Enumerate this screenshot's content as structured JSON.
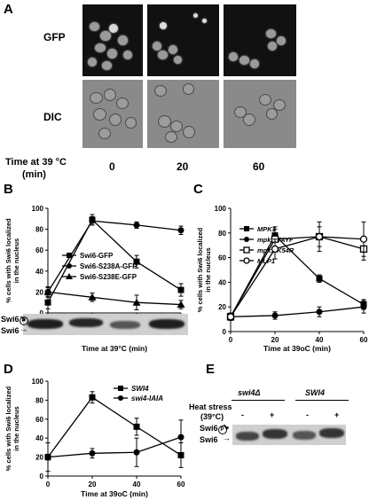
{
  "panel_a": {
    "label": "A",
    "row_gfp": "GFP",
    "row_dic": "DIC",
    "time_label_1": "Time at 39 °C",
    "time_label_2": "(min)",
    "times": [
      "0",
      "20",
      "60"
    ]
  },
  "panel_b": {
    "label": "B",
    "blot_upper": "Swi6",
    "blot_lower": "Swi6"
  },
  "panel_c": {
    "label": "C"
  },
  "panel_d": {
    "label": "D"
  },
  "panel_e": {
    "label": "E",
    "strain1": "swi4Δ",
    "strain2": "SWI4",
    "heat_label_1": "Heat stress",
    "heat_label_2": "(39°C)",
    "signs": [
      "-",
      "+",
      "-",
      "+"
    ],
    "band_upper": "Swi6",
    "band_lower": "Swi6"
  },
  "chart_data": [
    {
      "id": "B",
      "type": "line",
      "xlabel": "Time at 39°C (min)",
      "ylabel": "% cells with Swi6 localized in the nucleus",
      "x": [
        0,
        20,
        40,
        60
      ],
      "xlim": [
        0,
        60
      ],
      "ylim": [
        0,
        100
      ],
      "yticks": [
        0,
        20,
        40,
        60,
        80,
        100
      ],
      "legend_position": "middle-left",
      "series": [
        {
          "name": "Swi6-GFP",
          "marker": "square-filled",
          "values": [
            10,
            89,
            49,
            22
          ],
          "errors": [
            6,
            5,
            6,
            6
          ]
        },
        {
          "name": "Swi6-S238A-GFP",
          "marker": "circle-filled",
          "values": [
            20,
            88,
            84,
            79
          ],
          "errors": [
            5,
            4,
            3,
            4
          ]
        },
        {
          "name": "Swi6-S238E-GFP",
          "marker": "triangle-filled",
          "values": [
            20,
            15,
            10,
            8
          ],
          "errors": [
            4,
            4,
            7,
            4
          ]
        }
      ]
    },
    {
      "id": "C",
      "type": "line",
      "xlabel": "Time at 39oC (min)",
      "ylabel": "% cells with Swi6 localized in the nucleus",
      "x": [
        0,
        20,
        40,
        60
      ],
      "xlim": [
        0,
        60
      ],
      "ylim": [
        0,
        100
      ],
      "yticks": [
        0,
        20,
        40,
        60,
        80,
        100
      ],
      "legend_position": "middle-left",
      "series": [
        {
          "name": "MPK1",
          "marker": "square-filled",
          "values": [
            12,
            78,
            43,
            22
          ],
          "errors": [
            3,
            5,
            3,
            4
          ]
        },
        {
          "name": "mpk1-TAYF",
          "marker": "circle-filled",
          "values": [
            12,
            13,
            16,
            20
          ],
          "errors": [
            2,
            3,
            4,
            5
          ]
        },
        {
          "name": "mpk1-K54R",
          "marker": "square-open",
          "values": [
            12,
            75,
            77,
            67
          ],
          "errors": [
            3,
            10,
            12,
            9
          ]
        },
        {
          "name": "MLP1",
          "marker": "circle-open",
          "values": [
            12,
            67,
            77,
            75
          ],
          "errors": [
            3,
            8,
            8,
            14
          ]
        }
      ]
    },
    {
      "id": "D",
      "type": "line",
      "xlabel": "Time at 39oC (min)",
      "ylabel": "% cells with Swi6 localized in the nucleus",
      "x": [
        0,
        20,
        40,
        60
      ],
      "xlim": [
        0,
        60
      ],
      "ylim": [
        0,
        100
      ],
      "yticks": [
        0,
        20,
        40,
        60,
        80,
        100
      ],
      "legend_position": "top-right",
      "series": [
        {
          "name": "SWI4",
          "marker": "square-filled",
          "values": [
            20,
            83,
            52,
            22
          ],
          "errors": [
            3,
            6,
            9,
            13
          ]
        },
        {
          "name": "swi4-IAIA",
          "marker": "circle-filled",
          "values": [
            20,
            24,
            25,
            41
          ],
          "errors": [
            15,
            5,
            15,
            18
          ]
        }
      ]
    }
  ]
}
